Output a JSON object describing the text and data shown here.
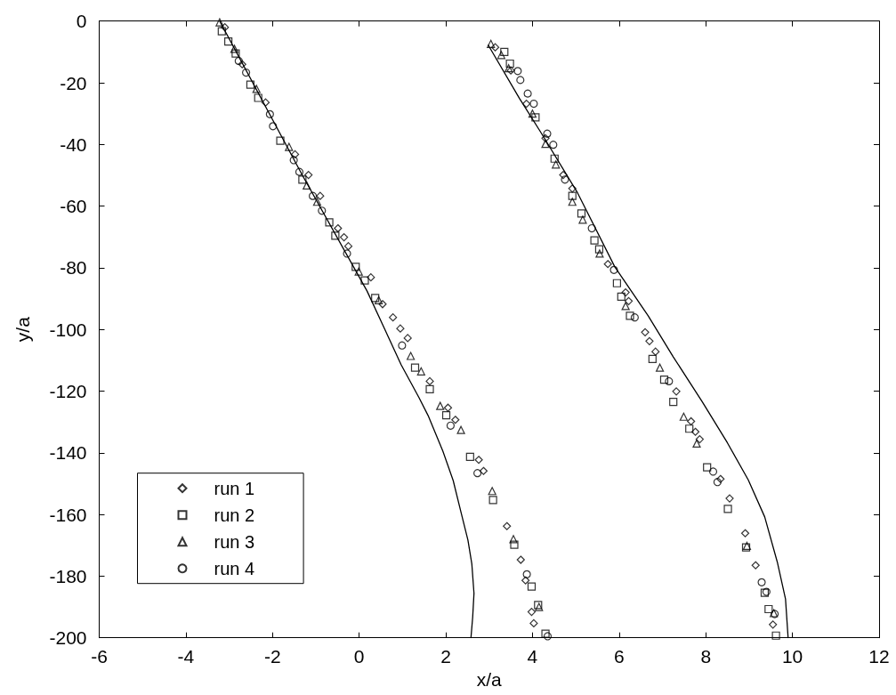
{
  "chart_data": {
    "type": "scatter",
    "xlabel": "x/a",
    "ylabel": "y/a",
    "xlim": [
      -6,
      12
    ],
    "ylim": [
      -200,
      0
    ],
    "xticks": [
      -6,
      -4,
      -2,
      0,
      2,
      4,
      6,
      8,
      10,
      12
    ],
    "yticks": [
      -200,
      -180,
      -160,
      -140,
      -120,
      -100,
      -80,
      -60,
      -40,
      -20,
      0
    ],
    "legend": "bottom left",
    "series": [
      {
        "name": "run 1",
        "marker": "diamond",
        "color": "#000000",
        "x": [
          -3.1,
          -2.7,
          -2.16,
          -1.48,
          -1.17,
          -0.9,
          -0.49,
          -0.35,
          -0.25,
          0.27,
          0.54,
          0.78,
          0.95,
          1.12,
          1.63,
          2.05,
          2.22,
          2.76,
          2.87,
          3.41,
          3.73,
          3.84,
          3.98,
          4.03,
          3.14,
          3.5,
          3.86,
          4.3,
          4.71,
          4.92,
          5.74,
          6.15,
          6.22,
          6.6,
          6.7,
          6.84,
          7.32,
          7.66,
          7.76,
          7.86,
          8.34,
          8.55,
          8.91,
          9.15,
          9.55
        ],
        "values": [
          -2,
          -14,
          -26.4,
          -43.2,
          -49.9,
          -56.7,
          -67.2,
          -70.1,
          -73,
          -83.1,
          -91.8,
          -96.1,
          -99.7,
          -102.8,
          -116.8,
          -125.4,
          -129.3,
          -142.3,
          -145.9,
          -163.8,
          -174.7,
          -181.4,
          -191.6,
          -195.3,
          -8.5,
          -16,
          -26.8,
          -38,
          -49.9,
          -54.3,
          -78.8,
          -88,
          -90.8,
          -100.9,
          -103.8,
          -107.2,
          -120.1,
          -129.8,
          -133.2,
          -135.6,
          -148.5,
          -154.8,
          -166.1,
          -176.5,
          -195.7
        ]
      },
      {
        "name": "run 2",
        "marker": "square",
        "color": "#000000",
        "x": [
          -3.17,
          -3.02,
          -2.85,
          -2.51,
          -2.33,
          -1.82,
          -1.31,
          -0.69,
          -0.55,
          -0.08,
          0.13,
          0.37,
          1.29,
          1.63,
          2.01,
          2.56,
          3.09,
          3.58,
          3.98,
          4.13,
          4.3,
          3.35,
          3.48,
          4.07,
          4.51,
          4.92,
          5.13,
          5.43,
          5.54,
          5.95,
          6.05,
          6.25,
          6.77,
          7.04,
          7.25,
          7.62,
          8.03,
          8.51,
          8.93,
          9.36,
          9.45,
          9.62
        ],
        "values": [
          -3.3,
          -6.6,
          -10.5,
          -20.6,
          -24.9,
          -38.8,
          -51.4,
          -65.3,
          -69.6,
          -79.7,
          -84.1,
          -89.8,
          -112.4,
          -119.4,
          -127.8,
          -141.3,
          -155.3,
          -169.8,
          -183.4,
          -189.4,
          -198.7,
          -10,
          -13.8,
          -31.2,
          -44.6,
          -56.7,
          -62.4,
          -71.1,
          -74,
          -85,
          -89.4,
          -95.6,
          -109.6,
          -116.3,
          -123.5,
          -132.2,
          -144.7,
          -158.2,
          -170.7,
          -185.4,
          -190.7,
          -199.3
        ]
      },
      {
        "name": "run 3",
        "marker": "triangle",
        "color": "#000000",
        "x": [
          -3.22,
          -2.88,
          -2.37,
          -1.62,
          -1.21,
          -0.97,
          -0.01,
          0.45,
          1.19,
          1.43,
          1.87,
          2.35,
          3.07,
          3.56,
          4.15,
          3.04,
          3.28,
          3.45,
          4.0,
          4.3,
          4.54,
          4.92,
          5.16,
          5.55,
          6.15,
          6.94,
          7.49,
          7.79,
          8.95,
          9.57
        ],
        "values": [
          -0.4,
          -9,
          -22,
          -40.8,
          -53.3,
          -58.6,
          -81.2,
          -90.5,
          -108.6,
          -113.6,
          -124.8,
          -132.6,
          -152.4,
          -168,
          -190,
          -7.4,
          -11,
          -15.3,
          -30,
          -39.8,
          -46.5,
          -58.6,
          -64.4,
          -75.4,
          -92.4,
          -112.4,
          -128.3,
          -137,
          -170.2,
          -192
        ]
      },
      {
        "name": "run 4",
        "marker": "circle",
        "color": "#000000",
        "x": [
          -2.78,
          -2.61,
          -2.06,
          -1.99,
          -1.51,
          -1.38,
          -1.07,
          -0.86,
          -0.28,
          0.99,
          2.11,
          2.73,
          3.87,
          4.35,
          3.66,
          3.72,
          3.89,
          4.03,
          4.34,
          4.48,
          4.75,
          5.37,
          5.88,
          6.36,
          7.15,
          8.17,
          8.27,
          9.29,
          9.4,
          9.59
        ],
        "values": [
          -12.9,
          -16.7,
          -30.2,
          -34.1,
          -45.1,
          -48.9,
          -56.7,
          -61.5,
          -75.4,
          -105.2,
          -131.2,
          -146.6,
          -179.4,
          -199.5,
          -16.2,
          -19.1,
          -23.5,
          -26.8,
          -36.5,
          -40.1,
          -51.4,
          -67.2,
          -80.7,
          -96.1,
          -116.8,
          -146.1,
          -149.5,
          -182,
          -185.1,
          -192.3
        ]
      },
      {
        "type": "line",
        "marker": "none",
        "line_style": "solid",
        "color": "#000000",
        "x": [
          -3.22,
          -1.31,
          0.18,
          0.56,
          0.97,
          1.38,
          1.59,
          1.93,
          2.17,
          2.34,
          2.51,
          2.6,
          2.65,
          2.62,
          2.58
        ],
        "values": [
          0,
          -50,
          -87.5,
          -99,
          -111.5,
          -122.1,
          -127.9,
          -139.4,
          -149,
          -158.7,
          -168.3,
          -176,
          -185.6,
          -193.3,
          -200
        ]
      },
      {
        "type": "line",
        "marker": "none",
        "line_style": "solid",
        "color": "#000000",
        "x": [
          2.98,
          3.7,
          4.18,
          5.04,
          5.9,
          6.67,
          7.25,
          7.92,
          8.5,
          8.98,
          9.36,
          9.65,
          9.84,
          9.9
        ],
        "values": [
          -7.8,
          -25.1,
          -35.8,
          -55.7,
          -79.7,
          -95.6,
          -108.9,
          -123.5,
          -136.8,
          -148.8,
          -160.8,
          -175.4,
          -187.4,
          -200
        ]
      }
    ]
  }
}
